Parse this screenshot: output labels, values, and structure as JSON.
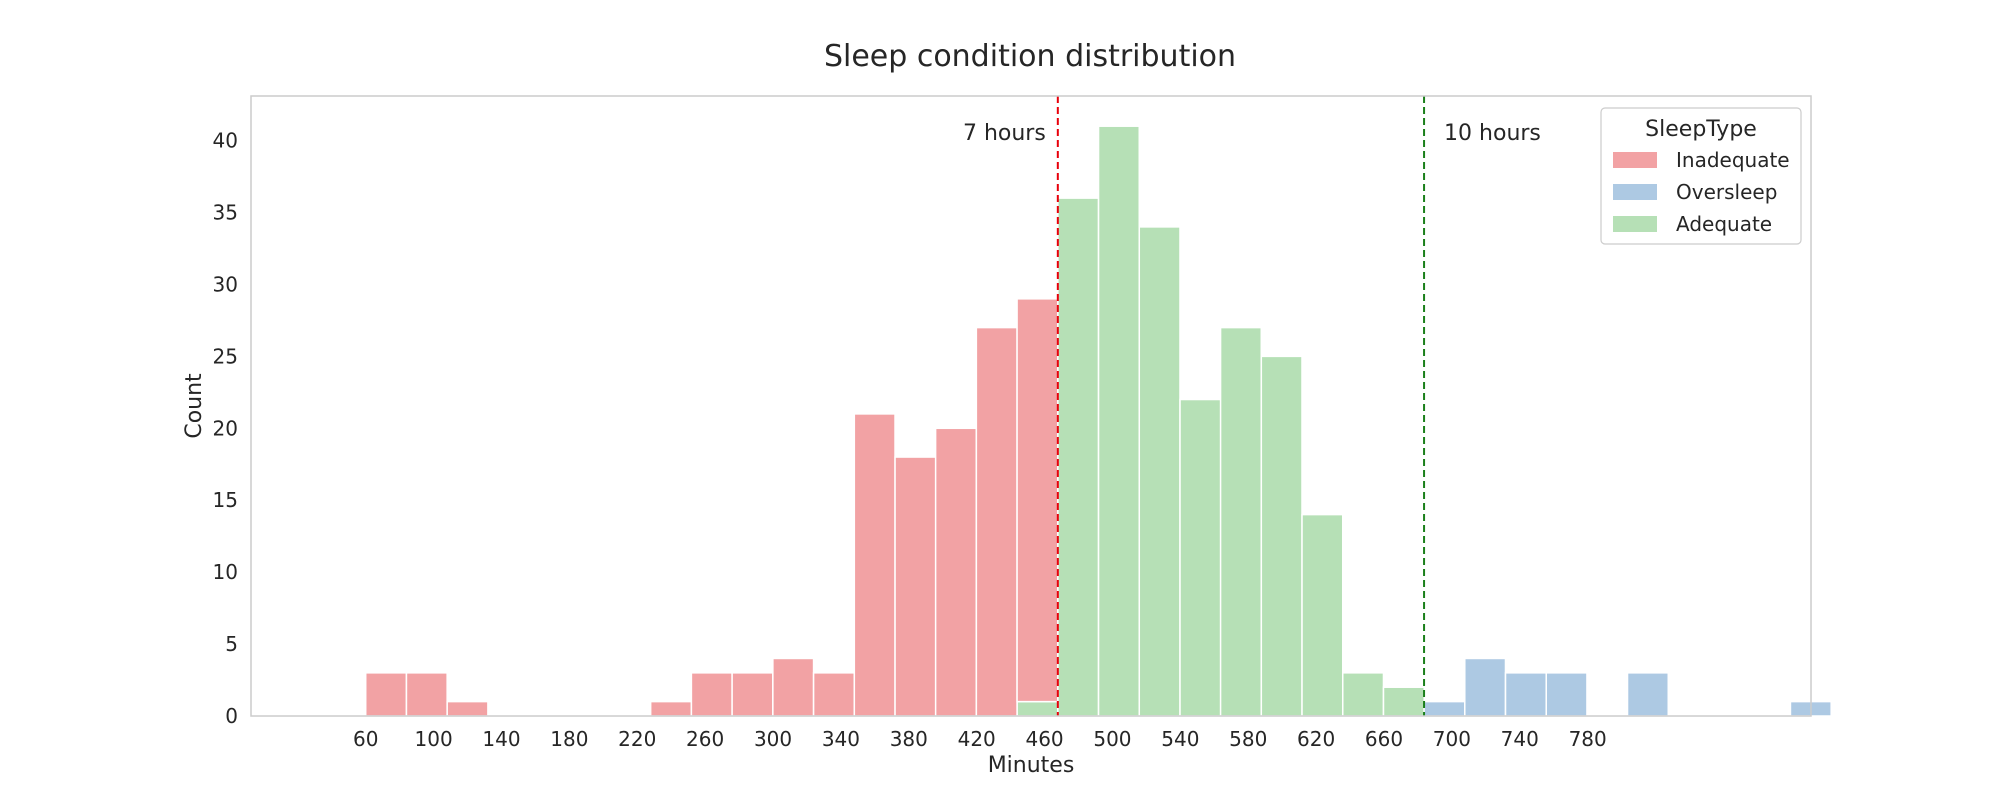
{
  "chart_data": {
    "type": "bar",
    "title": "Sleep condition distribution",
    "xlabel": "Minutes",
    "ylabel": "Count",
    "xlim": [
      -7.6,
      911.6
    ],
    "ylim": [
      0,
      43.1
    ],
    "bin_width": 23.98,
    "x_ticks": [
      60,
      100,
      140,
      180,
      220,
      260,
      300,
      340,
      380,
      420,
      460,
      500,
      540,
      580,
      620,
      660,
      700,
      740,
      780
    ],
    "y_ticks": [
      0,
      5,
      10,
      15,
      20,
      25,
      30,
      35,
      40
    ],
    "grid": false,
    "stacked": true,
    "legend": {
      "title": "SleepType",
      "position": "top-right"
    },
    "series": [
      {
        "name": "Inadequate",
        "color": "#f2a2a4",
        "bins": [
          {
            "start": 60.0,
            "count": 3
          },
          {
            "start": 84.0,
            "count": 3
          },
          {
            "start": 108.0,
            "count": 1
          },
          {
            "start": 227.9,
            "count": 1
          },
          {
            "start": 251.9,
            "count": 3
          },
          {
            "start": 275.9,
            "count": 3
          },
          {
            "start": 299.9,
            "count": 4
          },
          {
            "start": 323.9,
            "count": 3
          },
          {
            "start": 347.9,
            "count": 21
          },
          {
            "start": 371.9,
            "count": 18
          },
          {
            "start": 395.8,
            "count": 20
          },
          {
            "start": 419.8,
            "count": 27
          },
          {
            "start": 443.8,
            "count": 28
          }
        ]
      },
      {
        "name": "Oversleep",
        "color": "#adc9e3",
        "bins": [
          {
            "start": 683.6,
            "count": 1
          },
          {
            "start": 707.6,
            "count": 4
          },
          {
            "start": 731.6,
            "count": 3
          },
          {
            "start": 755.6,
            "count": 3
          },
          {
            "start": 803.5,
            "count": 3
          },
          {
            "start": 899.5,
            "count": 1
          }
        ]
      },
      {
        "name": "Adequate",
        "color": "#b6e0b6",
        "bins": [
          {
            "start": 443.8,
            "count": 1
          },
          {
            "start": 467.8,
            "count": 36
          },
          {
            "start": 491.8,
            "count": 41
          },
          {
            "start": 515.8,
            "count": 34
          },
          {
            "start": 539.8,
            "count": 22
          },
          {
            "start": 563.7,
            "count": 27
          },
          {
            "start": 587.7,
            "count": 25
          },
          {
            "start": 611.7,
            "count": 14
          },
          {
            "start": 635.7,
            "count": 3
          },
          {
            "start": 659.7,
            "count": 2
          }
        ]
      }
    ],
    "stack_order": [
      "Adequate",
      "Oversleep",
      "Inadequate"
    ],
    "reference_lines": [
      {
        "x": 467.8,
        "label": "7 hours",
        "color": "#e8000b",
        "label_side": "left"
      },
      {
        "x": 683.6,
        "label": "10 hours",
        "color": "#1a7f1a",
        "label_side": "right"
      }
    ]
  }
}
